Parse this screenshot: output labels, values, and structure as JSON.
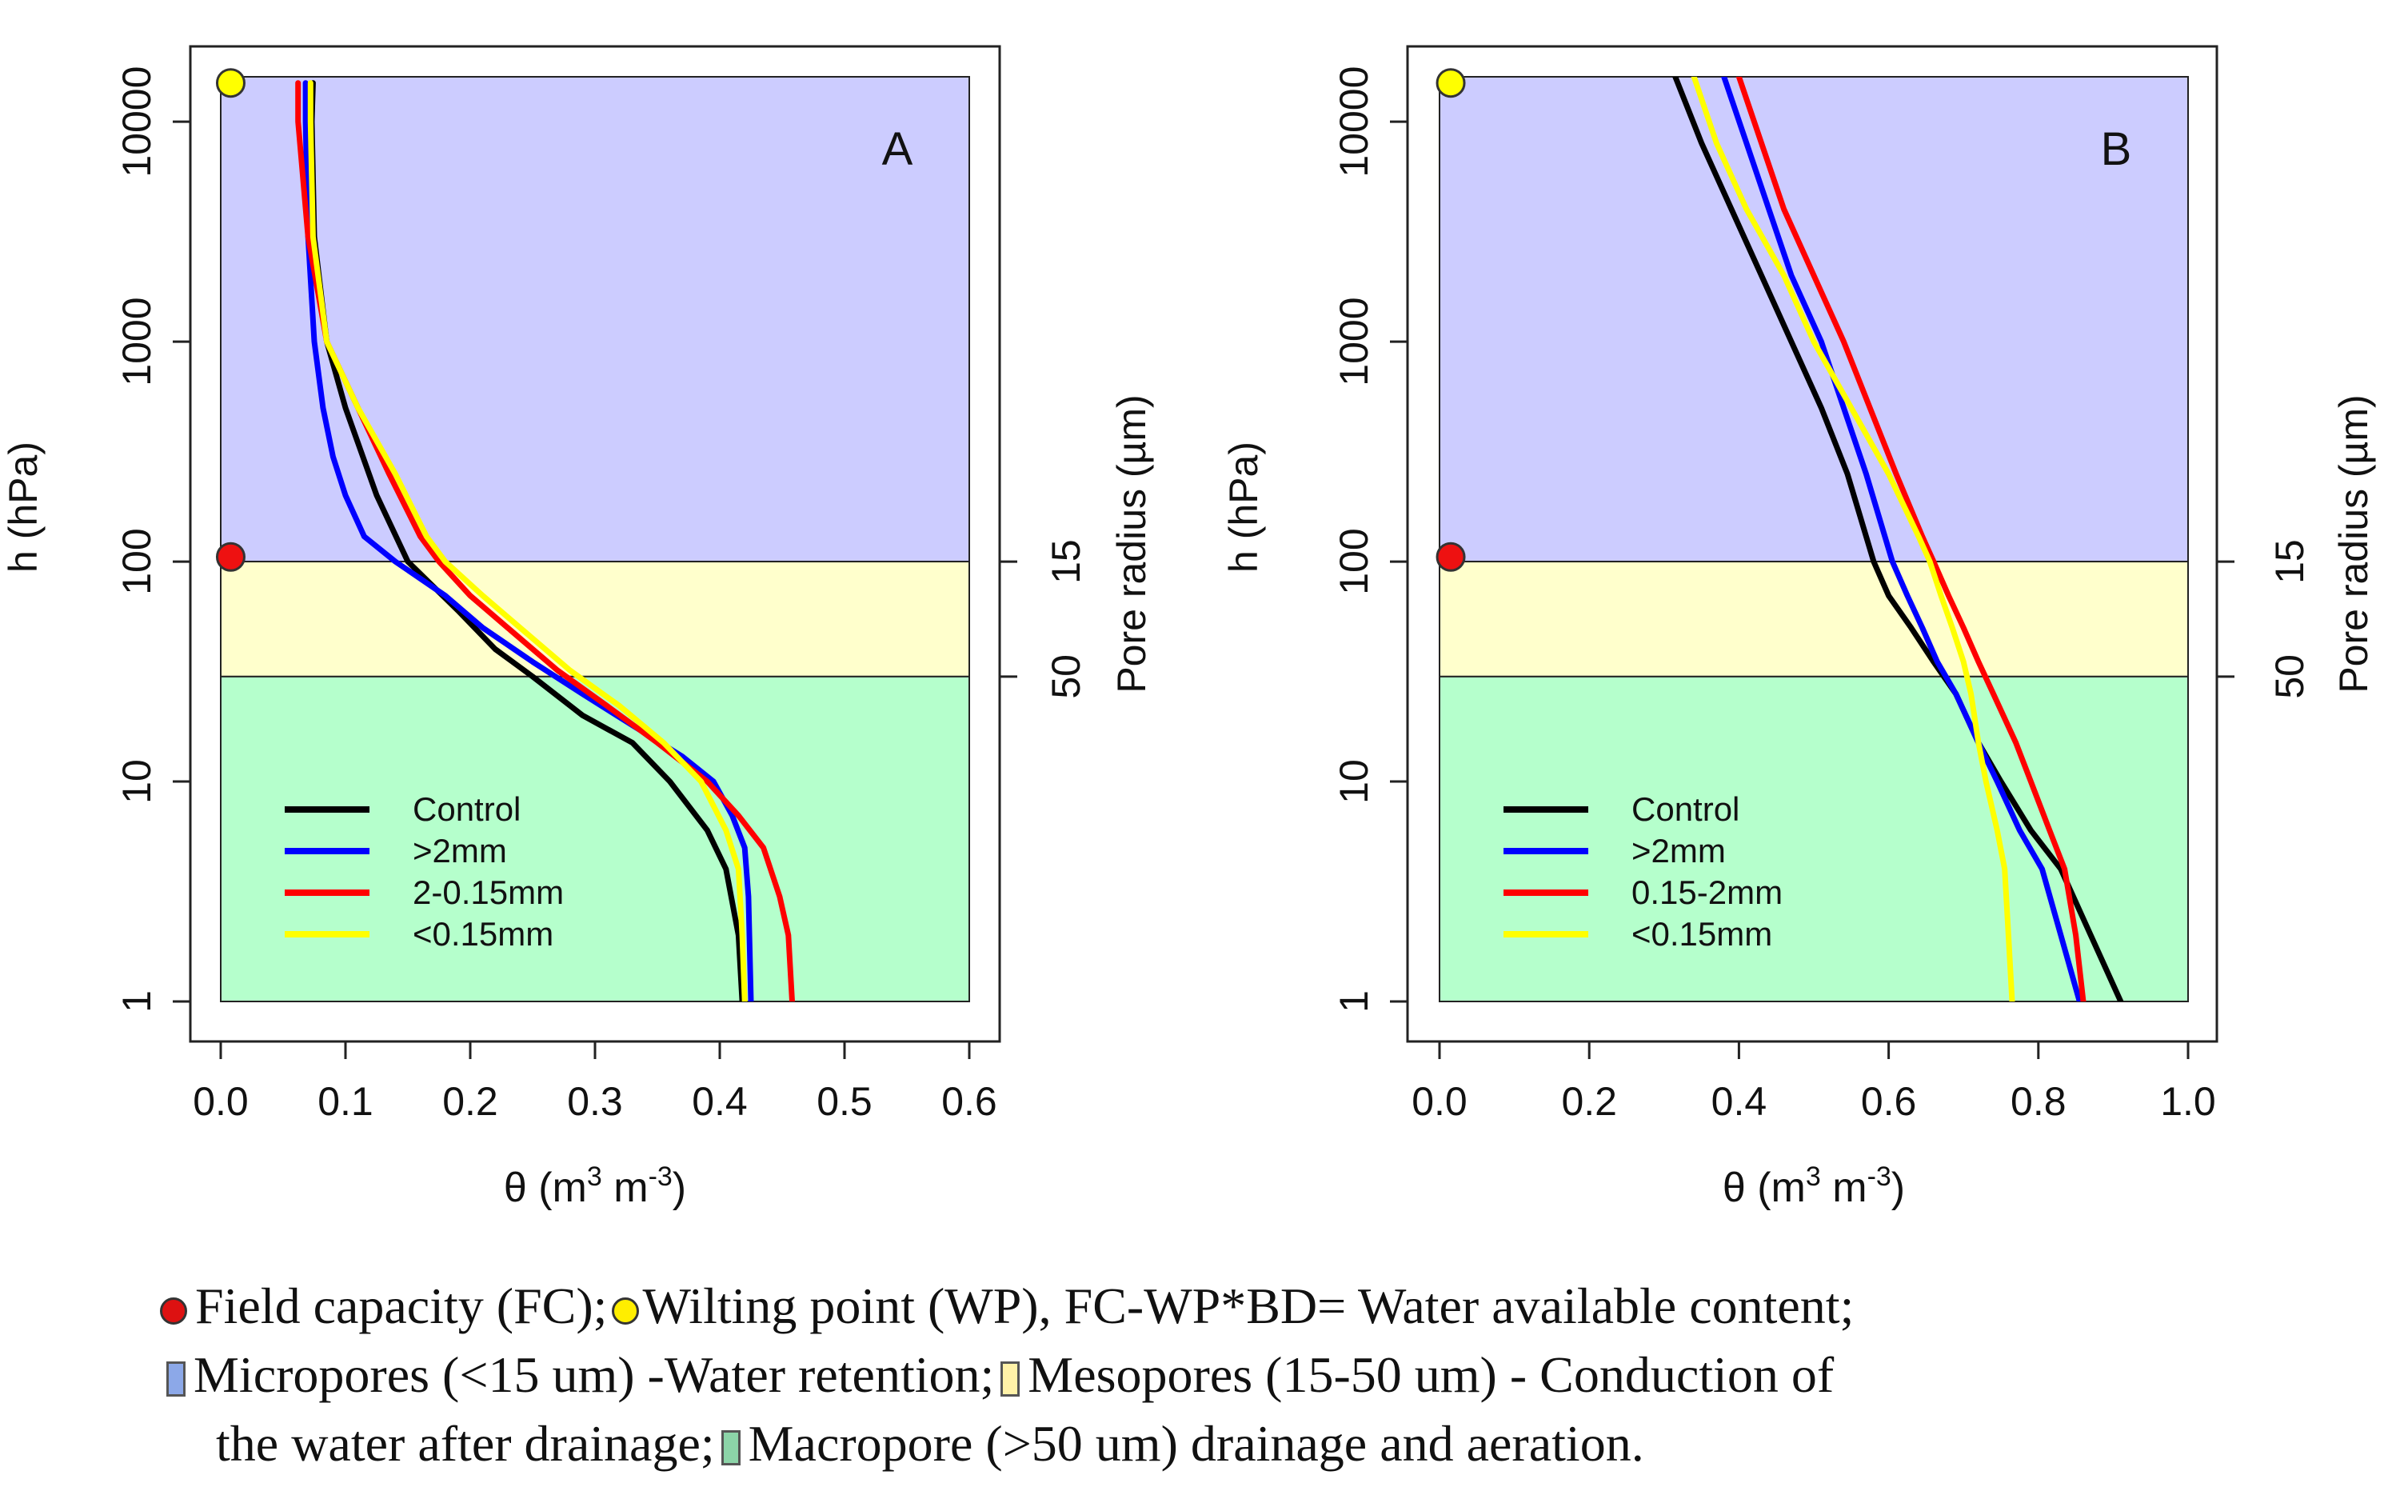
{
  "chart_data": [
    {
      "type": "line",
      "panel_label": "A",
      "xlabel_main": "θ (m",
      "xlabel_sup1": "3",
      "xlabel_mid": " m",
      "xlabel_sup2": "-3",
      "xlabel_end": ")",
      "ylabel": "h (hPa)",
      "y2label": "Pore radius (µm)",
      "y2ticks": [
        {
          "h": 100,
          "label": "15"
        },
        {
          "h": 30,
          "label": "50"
        }
      ],
      "xlim": [
        0.0,
        0.6
      ],
      "xticks": [
        0.0,
        0.1,
        0.2,
        0.3,
        0.4,
        0.5,
        0.6
      ],
      "xtick_labels": [
        "0.0",
        "0.1",
        "0.2",
        "0.3",
        "0.4",
        "0.5",
        "0.6"
      ],
      "ylim": [
        1,
        16000
      ],
      "y_scale": "log",
      "yticks": [
        1,
        10,
        100,
        1000,
        10000
      ],
      "ytick_labels": [
        "1",
        "10",
        "100",
        "1000",
        "10000"
      ],
      "bands": [
        {
          "from": 100,
          "to": 16000,
          "color": "#ccccff"
        },
        {
          "from": 30,
          "to": 100,
          "color": "#ffffcc"
        },
        {
          "from": 1,
          "to": 30,
          "color": "#b5ffcc"
        }
      ],
      "markers": [
        {
          "x": 0.008,
          "y": 15000,
          "color": "#ffff00"
        },
        {
          "x": 0.008,
          "y": 105,
          "color": "#ee1111"
        }
      ],
      "legend_position": "bottom-left",
      "series": [
        {
          "name": "Control",
          "color": "#000000",
          "points": [
            [
              0.074,
              15000
            ],
            [
              0.073,
              10000
            ],
            [
              0.075,
              3000
            ],
            [
              0.085,
              1000
            ],
            [
              0.1,
              500
            ],
            [
              0.125,
              200
            ],
            [
              0.15,
              100
            ],
            [
              0.19,
              60
            ],
            [
              0.22,
              40
            ],
            [
              0.25,
              30
            ],
            [
              0.29,
              20
            ],
            [
              0.33,
              15
            ],
            [
              0.36,
              10
            ],
            [
              0.39,
              6
            ],
            [
              0.405,
              4
            ],
            [
              0.415,
              2
            ],
            [
              0.418,
              1
            ]
          ]
        },
        {
          "name": ">2mm",
          "color": "#0000ff",
          "points": [
            [
              0.068,
              15000
            ],
            [
              0.068,
              10000
            ],
            [
              0.07,
              3000
            ],
            [
              0.075,
              1000
            ],
            [
              0.082,
              500
            ],
            [
              0.09,
              300
            ],
            [
              0.1,
              200
            ],
            [
              0.115,
              130
            ],
            [
              0.14,
              100
            ],
            [
              0.18,
              70
            ],
            [
              0.21,
              50
            ],
            [
              0.25,
              35
            ],
            [
              0.29,
              25
            ],
            [
              0.33,
              18
            ],
            [
              0.37,
              13
            ],
            [
              0.395,
              10
            ],
            [
              0.41,
              7
            ],
            [
              0.42,
              5
            ],
            [
              0.423,
              3
            ],
            [
              0.425,
              1
            ]
          ]
        },
        {
          "name": "2-0.15mm",
          "color": "#ff0000",
          "points": [
            [
              0.062,
              15000
            ],
            [
              0.062,
              10000
            ],
            [
              0.07,
              3000
            ],
            [
              0.085,
              1000
            ],
            [
              0.11,
              500
            ],
            [
              0.135,
              250
            ],
            [
              0.16,
              130
            ],
            [
              0.175,
              100
            ],
            [
              0.2,
              70
            ],
            [
              0.23,
              50
            ],
            [
              0.27,
              32
            ],
            [
              0.31,
              22
            ],
            [
              0.35,
              15
            ],
            [
              0.39,
              10
            ],
            [
              0.415,
              7
            ],
            [
              0.435,
              5
            ],
            [
              0.448,
              3
            ],
            [
              0.455,
              2
            ],
            [
              0.458,
              1
            ]
          ]
        },
        {
          "name": "<0.15mm",
          "color": "#ffff00",
          "points": [
            [
              0.072,
              15000
            ],
            [
              0.072,
              10000
            ],
            [
              0.074,
              3000
            ],
            [
              0.085,
              1000
            ],
            [
              0.11,
              500
            ],
            [
              0.14,
              250
            ],
            [
              0.165,
              130
            ],
            [
              0.18,
              100
            ],
            [
              0.21,
              70
            ],
            [
              0.24,
              50
            ],
            [
              0.28,
              32
            ],
            [
              0.32,
              22
            ],
            [
              0.355,
              15
            ],
            [
              0.385,
              10
            ],
            [
              0.405,
              6
            ],
            [
              0.415,
              4
            ],
            [
              0.418,
              2
            ],
            [
              0.42,
              1
            ]
          ]
        }
      ]
    },
    {
      "type": "line",
      "panel_label": "B",
      "xlabel_main": "θ (m",
      "xlabel_sup1": "3",
      "xlabel_mid": " m",
      "xlabel_sup2": "-3",
      "xlabel_end": ")",
      "ylabel": "h (hPa)",
      "y2label": "Pore radius (µm)",
      "y2ticks": [
        {
          "h": 100,
          "label": "15"
        },
        {
          "h": 30,
          "label": "50"
        }
      ],
      "xlim": [
        0.0,
        1.0
      ],
      "xticks": [
        0.0,
        0.2,
        0.4,
        0.6,
        0.8,
        1.0
      ],
      "xtick_labels": [
        "0.0",
        "0.2",
        "0.4",
        "0.6",
        "0.8",
        "1.0"
      ],
      "ylim": [
        1,
        16000
      ],
      "y_scale": "log",
      "yticks": [
        1,
        10,
        100,
        1000,
        10000
      ],
      "ytick_labels": [
        "1",
        "10",
        "100",
        "1000",
        "10000"
      ],
      "bands": [
        {
          "from": 100,
          "to": 16000,
          "color": "#ccccff"
        },
        {
          "from": 30,
          "to": 100,
          "color": "#ffffcc"
        },
        {
          "from": 1,
          "to": 30,
          "color": "#b5ffcc"
        }
      ],
      "markers": [
        {
          "x": 0.015,
          "y": 15000,
          "color": "#ffff00"
        },
        {
          "x": 0.015,
          "y": 105,
          "color": "#ee1111"
        }
      ],
      "legend_position": "bottom-left",
      "series": [
        {
          "name": "Control",
          "color": "#000000",
          "points": [
            [
              0.315,
              16000
            ],
            [
              0.35,
              8000
            ],
            [
              0.39,
              4000
            ],
            [
              0.43,
              2000
            ],
            [
              0.47,
              1000
            ],
            [
              0.51,
              500
            ],
            [
              0.545,
              250
            ],
            [
              0.57,
              130
            ],
            [
              0.58,
              100
            ],
            [
              0.6,
              70
            ],
            [
              0.63,
              50
            ],
            [
              0.66,
              35
            ],
            [
              0.69,
              25
            ],
            [
              0.72,
              15
            ],
            [
              0.75,
              10
            ],
            [
              0.79,
              6
            ],
            [
              0.83,
              4
            ],
            [
              0.87,
              2
            ],
            [
              0.91,
              1
            ]
          ]
        },
        {
          "name": ">2mm",
          "color": "#0000ff",
          "points": [
            [
              0.38,
              16000
            ],
            [
              0.41,
              8000
            ],
            [
              0.44,
              4000
            ],
            [
              0.47,
              2000
            ],
            [
              0.51,
              1000
            ],
            [
              0.54,
              500
            ],
            [
              0.57,
              250
            ],
            [
              0.595,
              130
            ],
            [
              0.605,
              100
            ],
            [
              0.625,
              70
            ],
            [
              0.645,
              50
            ],
            [
              0.665,
              35
            ],
            [
              0.69,
              25
            ],
            [
              0.72,
              15
            ],
            [
              0.745,
              10
            ],
            [
              0.775,
              6
            ],
            [
              0.805,
              4
            ],
            [
              0.83,
              2
            ],
            [
              0.855,
              1
            ]
          ]
        },
        {
          "name": "0.15-2mm",
          "color": "#ff0000",
          "points": [
            [
              0.4,
              16000
            ],
            [
              0.43,
              8000
            ],
            [
              0.46,
              4000
            ],
            [
              0.5,
              2000
            ],
            [
              0.54,
              1000
            ],
            [
              0.575,
              500
            ],
            [
              0.61,
              250
            ],
            [
              0.645,
              130
            ],
            [
              0.66,
              100
            ],
            [
              0.68,
              70
            ],
            [
              0.7,
              50
            ],
            [
              0.72,
              35
            ],
            [
              0.74,
              25
            ],
            [
              0.77,
              15
            ],
            [
              0.79,
              10
            ],
            [
              0.815,
              6
            ],
            [
              0.835,
              4
            ],
            [
              0.85,
              2
            ],
            [
              0.86,
              1
            ]
          ]
        },
        {
          "name": "<0.15mm",
          "color": "#ffff00",
          "points": [
            [
              0.34,
              16000
            ],
            [
              0.37,
              8000
            ],
            [
              0.41,
              4000
            ],
            [
              0.46,
              2000
            ],
            [
              0.5,
              1000
            ],
            [
              0.55,
              500
            ],
            [
              0.6,
              250
            ],
            [
              0.64,
              130
            ],
            [
              0.655,
              100
            ],
            [
              0.67,
              70
            ],
            [
              0.685,
              50
            ],
            [
              0.7,
              35
            ],
            [
              0.71,
              25
            ],
            [
              0.72,
              15
            ],
            [
              0.73,
              10
            ],
            [
              0.745,
              6
            ],
            [
              0.755,
              4
            ],
            [
              0.76,
              2
            ],
            [
              0.765,
              1
            ]
          ]
        }
      ]
    }
  ],
  "caption": {
    "line1": {
      "fc_dot_color": "#dd1111",
      "fc_text": "Field capacity (FC);",
      "wp_dot_color": "#ffee00",
      "wp_text": "Wilting point (WP), FC-WP*BD= Water available content;"
    },
    "line2": {
      "micro_color": "#8ca8e8",
      "micro_text": "Micropores (<15 um) -Water retention;",
      "meso_color": "#fff2a8",
      "meso_text": "Mesopores (15-50 um) - Conduction of"
    },
    "line3": {
      "text_a": "the water after drainage;",
      "macro_color": "#8cd4a8",
      "text_b": "Macropore (>50 um) drainage and aeration."
    }
  }
}
